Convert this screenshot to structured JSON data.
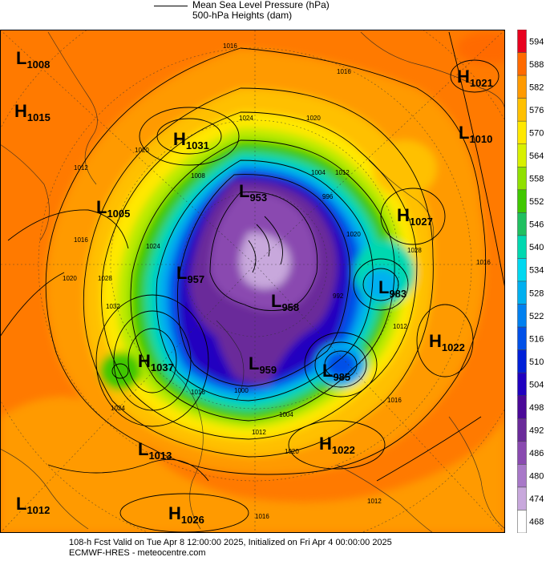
{
  "header": {
    "line1": "Mean Sea Level Pressure (hPa)",
    "line2": "500-hPa Heights (dam)"
  },
  "footer": {
    "line1": "108-h Fcst Valid on Tue Apr  8 12:00:00 2025, Initialized on Fri Apr  4 00:00:00 2025",
    "line2": "ECMWF-HRES  - meteocentre.com"
  },
  "colorbar": {
    "ticks": [
      "594",
      "588",
      "582",
      "576",
      "570",
      "564",
      "558",
      "552",
      "546",
      "540",
      "534",
      "528",
      "522",
      "516",
      "510",
      "504",
      "498",
      "492",
      "486",
      "480",
      "474",
      "468"
    ],
    "colors": [
      "#e8001e",
      "#ff6a00",
      "#ff9a00",
      "#ffc000",
      "#ffe800",
      "#d8f000",
      "#90e000",
      "#40c800",
      "#20c060",
      "#00d8b0",
      "#00d8f0",
      "#00b0f0",
      "#0080f0",
      "#0050e8",
      "#0020d8",
      "#2000c0",
      "#4a0898",
      "#6a2a9a",
      "#8a4ab0",
      "#a878c8",
      "#c8a8dc",
      "#ffffff"
    ]
  },
  "pressure_centers": [
    {
      "type": "L",
      "value": "1008",
      "pos": [
        40,
        72
      ]
    },
    {
      "type": "H",
      "value": "1015",
      "pos": [
        38,
        138
      ]
    },
    {
      "type": "H",
      "value": "1031",
      "pos": [
        236,
        173
      ]
    },
    {
      "type": "L",
      "value": "1005",
      "pos": [
        140,
        258
      ]
    },
    {
      "type": "L",
      "value": "953",
      "pos": [
        318,
        238
      ]
    },
    {
      "type": "L",
      "value": "957",
      "pos": [
        240,
        340
      ]
    },
    {
      "type": "L",
      "value": "958",
      "pos": [
        358,
        375
      ]
    },
    {
      "type": "L",
      "value": "983",
      "pos": [
        492,
        358
      ]
    },
    {
      "type": "H",
      "value": "1037",
      "pos": [
        192,
        450
      ]
    },
    {
      "type": "L",
      "value": "959",
      "pos": [
        330,
        453
      ]
    },
    {
      "type": "L",
      "value": "985",
      "pos": [
        422,
        462
      ]
    },
    {
      "type": "H",
      "value": "1021",
      "pos": [
        590,
        95
      ]
    },
    {
      "type": "L",
      "value": "1010",
      "pos": [
        592,
        165
      ]
    },
    {
      "type": "H",
      "value": "1027",
      "pos": [
        515,
        268
      ]
    },
    {
      "type": "H",
      "value": "1022",
      "pos": [
        555,
        425
      ]
    },
    {
      "type": "H",
      "value": "1022",
      "pos": [
        418,
        553
      ]
    },
    {
      "type": "L",
      "value": "1013",
      "pos": [
        192,
        560
      ]
    },
    {
      "type": "L",
      "value": "1012",
      "pos": [
        40,
        628
      ]
    },
    {
      "type": "H",
      "value": "1026",
      "pos": [
        230,
        640
      ]
    }
  ],
  "isobar_labels": [
    {
      "text": "1016",
      "pos": [
        278,
        60
      ]
    },
    {
      "text": "1016",
      "pos": [
        420,
        92
      ]
    },
    {
      "text": "1024",
      "pos": [
        298,
        150
      ]
    },
    {
      "text": "1020",
      "pos": [
        382,
        150
      ]
    },
    {
      "text": "1020",
      "pos": [
        168,
        190
      ]
    },
    {
      "text": "1012",
      "pos": [
        92,
        212
      ]
    },
    {
      "text": "1008",
      "pos": [
        238,
        222
      ]
    },
    {
      "text": "1004",
      "pos": [
        388,
        218
      ]
    },
    {
      "text": "1012",
      "pos": [
        418,
        218
      ]
    },
    {
      "text": "996",
      "pos": [
        402,
        248
      ]
    },
    {
      "text": "1016",
      "pos": [
        92,
        302
      ]
    },
    {
      "text": "1024",
      "pos": [
        182,
        310
      ]
    },
    {
      "text": "1020",
      "pos": [
        78,
        350
      ]
    },
    {
      "text": "1028",
      "pos": [
        122,
        350
      ]
    },
    {
      "text": "1020",
      "pos": [
        432,
        295
      ]
    },
    {
      "text": "1028",
      "pos": [
        508,
        315
      ]
    },
    {
      "text": "1016",
      "pos": [
        594,
        330
      ]
    },
    {
      "text": "1032",
      "pos": [
        132,
        385
      ]
    },
    {
      "text": "992",
      "pos": [
        415,
        372
      ]
    },
    {
      "text": "1012",
      "pos": [
        490,
        410
      ]
    },
    {
      "text": "1016",
      "pos": [
        238,
        492
      ]
    },
    {
      "text": "1000",
      "pos": [
        292,
        490
      ]
    },
    {
      "text": "1004",
      "pos": [
        348,
        520
      ]
    },
    {
      "text": "1016",
      "pos": [
        483,
        502
      ]
    },
    {
      "text": "1024",
      "pos": [
        138,
        512
      ]
    },
    {
      "text": "1012",
      "pos": [
        314,
        542
      ]
    },
    {
      "text": "1020",
      "pos": [
        355,
        566
      ]
    },
    {
      "text": "1016",
      "pos": [
        318,
        647
      ]
    },
    {
      "text": "1012",
      "pos": [
        458,
        628
      ]
    }
  ]
}
